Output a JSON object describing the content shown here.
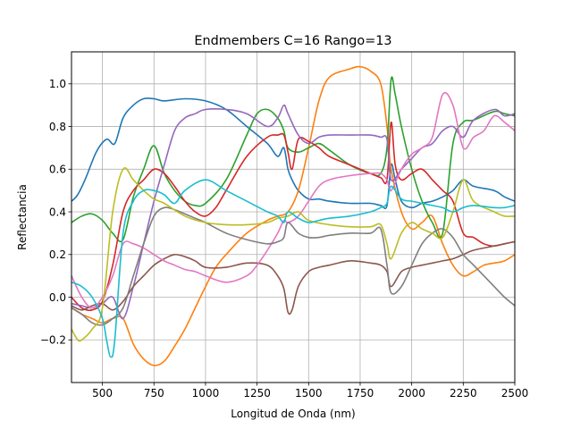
{
  "chart_data": {
    "type": "line",
    "title": "Endmembers C=16 Rango=13",
    "xlabel": "Longitud de Onda (nm)",
    "ylabel": "Reflectancia",
    "xlim": [
      350,
      2500
    ],
    "ylim": [
      -0.4,
      1.15
    ],
    "xticks": [
      500,
      750,
      1000,
      1250,
      1500,
      1750,
      2000,
      2250,
      2500
    ],
    "xtick_labels": [
      "500",
      "750",
      "1000",
      "1250",
      "1500",
      "1750",
      "2000",
      "2250",
      "2500"
    ],
    "yticks": [
      -0.2,
      0.0,
      0.2,
      0.4,
      0.6,
      0.8,
      1.0
    ],
    "ytick_labels": [
      "−0.2",
      "0.0",
      "0.2",
      "0.4",
      "0.6",
      "0.8",
      "1.0"
    ],
    "grid": true,
    "legend": "none",
    "series": [
      {
        "color": "#1f77b4",
        "x": [
          350,
          380,
          420,
          470,
          520,
          560,
          600,
          650,
          700,
          750,
          800,
          900,
          1000,
          1100,
          1200,
          1300,
          1350,
          1380,
          1400,
          1420,
          1450,
          1500,
          1550,
          1600,
          1700,
          1800,
          1850,
          1880,
          1900,
          1920,
          1950,
          2000,
          2050,
          2100,
          2150,
          2200,
          2250,
          2300,
          2400,
          2450,
          2500
        ],
        "y": [
          0.45,
          0.48,
          0.56,
          0.68,
          0.74,
          0.72,
          0.84,
          0.9,
          0.93,
          0.93,
          0.92,
          0.93,
          0.92,
          0.88,
          0.8,
          0.72,
          0.66,
          0.7,
          0.6,
          0.55,
          0.5,
          0.46,
          0.46,
          0.45,
          0.44,
          0.44,
          0.43,
          0.43,
          0.62,
          0.55,
          0.45,
          0.42,
          0.44,
          0.45,
          0.47,
          0.5,
          0.55,
          0.52,
          0.5,
          0.47,
          0.45
        ]
      },
      {
        "color": "#ff7f0e",
        "x": [
          350,
          400,
          450,
          500,
          550,
          600,
          650,
          700,
          750,
          800,
          850,
          900,
          950,
          1000,
          1050,
          1100,
          1200,
          1300,
          1350,
          1400,
          1450,
          1500,
          1550,
          1600,
          1700,
          1750,
          1800,
          1850,
          1880,
          1900,
          1950,
          2000,
          2050,
          2100,
          2150,
          2200,
          2250,
          2300,
          2350,
          2400,
          2450,
          2500
        ],
        "y": [
          -0.05,
          -0.08,
          -0.1,
          -0.12,
          -0.1,
          -0.1,
          -0.22,
          -0.29,
          -0.32,
          -0.3,
          -0.23,
          -0.15,
          -0.05,
          0.05,
          0.14,
          0.2,
          0.3,
          0.36,
          0.38,
          0.4,
          0.5,
          0.7,
          0.92,
          1.03,
          1.07,
          1.08,
          1.06,
          1.0,
          0.8,
          0.6,
          0.4,
          0.32,
          0.35,
          0.38,
          0.25,
          0.15,
          0.1,
          0.12,
          0.15,
          0.16,
          0.17,
          0.2
        ]
      },
      {
        "color": "#2ca02c",
        "x": [
          350,
          400,
          450,
          500,
          550,
          600,
          650,
          700,
          750,
          800,
          850,
          900,
          950,
          1000,
          1100,
          1200,
          1250,
          1300,
          1350,
          1380,
          1400,
          1450,
          1500,
          1550,
          1600,
          1700,
          1800,
          1850,
          1880,
          1900,
          1920,
          1950,
          2000,
          2050,
          2100,
          2150,
          2200,
          2250,
          2300,
          2400,
          2450,
          2500
        ],
        "y": [
          0.35,
          0.38,
          0.39,
          0.36,
          0.3,
          0.27,
          0.47,
          0.6,
          0.71,
          0.58,
          0.5,
          0.45,
          0.43,
          0.44,
          0.55,
          0.76,
          0.86,
          0.88,
          0.84,
          0.78,
          0.7,
          0.68,
          0.7,
          0.72,
          0.69,
          0.62,
          0.58,
          0.58,
          0.7,
          1.02,
          0.95,
          0.8,
          0.6,
          0.45,
          0.35,
          0.3,
          0.72,
          0.82,
          0.83,
          0.87,
          0.86,
          0.85
        ]
      },
      {
        "color": "#d62728",
        "x": [
          350,
          400,
          450,
          500,
          550,
          600,
          650,
          700,
          750,
          800,
          850,
          900,
          950,
          1000,
          1050,
          1100,
          1200,
          1300,
          1350,
          1380,
          1400,
          1420,
          1450,
          1500,
          1550,
          1600,
          1700,
          1800,
          1850,
          1880,
          1900,
          1920,
          1950,
          2000,
          2050,
          2100,
          2150,
          2200,
          2250,
          2300,
          2350,
          2400,
          2450,
          2500
        ],
        "y": [
          0.0,
          -0.05,
          -0.06,
          -0.02,
          0.15,
          0.4,
          0.5,
          0.55,
          0.6,
          0.58,
          0.52,
          0.45,
          0.4,
          0.38,
          0.42,
          0.5,
          0.66,
          0.75,
          0.76,
          0.76,
          0.68,
          0.6,
          0.74,
          0.73,
          0.7,
          0.66,
          0.62,
          0.58,
          0.56,
          0.55,
          0.82,
          0.62,
          0.55,
          0.58,
          0.6,
          0.55,
          0.5,
          0.45,
          0.3,
          0.28,
          0.25,
          0.24,
          0.25,
          0.26
        ]
      },
      {
        "color": "#9467bd",
        "x": [
          350,
          400,
          450,
          500,
          550,
          600,
          650,
          700,
          750,
          800,
          850,
          900,
          950,
          1000,
          1100,
          1200,
          1300,
          1350,
          1380,
          1400,
          1450,
          1500,
          1550,
          1600,
          1700,
          1800,
          1850,
          1880,
          1900,
          1950,
          2000,
          2050,
          2100,
          2150,
          2200,
          2250,
          2300,
          2400,
          2450,
          2500
        ],
        "y": [
          -0.03,
          -0.04,
          -0.05,
          -0.03,
          0.0,
          -0.1,
          0.05,
          0.25,
          0.45,
          0.62,
          0.78,
          0.84,
          0.86,
          0.88,
          0.88,
          0.86,
          0.8,
          0.84,
          0.9,
          0.86,
          0.76,
          0.72,
          0.75,
          0.76,
          0.76,
          0.76,
          0.75,
          0.74,
          0.55,
          0.6,
          0.65,
          0.7,
          0.72,
          0.78,
          0.8,
          0.75,
          0.83,
          0.88,
          0.85,
          0.86
        ]
      },
      {
        "color": "#8c564b",
        "x": [
          350,
          400,
          450,
          500,
          550,
          600,
          650,
          700,
          750,
          800,
          850,
          900,
          950,
          1000,
          1100,
          1200,
          1300,
          1350,
          1380,
          1400,
          1420,
          1450,
          1500,
          1550,
          1600,
          1700,
          1800,
          1850,
          1880,
          1900,
          1950,
          2000,
          2050,
          2100,
          2150,
          2200,
          2250,
          2300,
          2400,
          2450,
          2500
        ],
        "y": [
          -0.04,
          -0.06,
          -0.04,
          -0.03,
          -0.06,
          -0.02,
          0.05,
          0.1,
          0.15,
          0.18,
          0.2,
          0.19,
          0.17,
          0.14,
          0.14,
          0.16,
          0.15,
          0.1,
          0.04,
          -0.07,
          -0.06,
          0.05,
          0.12,
          0.14,
          0.15,
          0.17,
          0.16,
          0.15,
          0.12,
          0.05,
          0.12,
          0.14,
          0.15,
          0.16,
          0.17,
          0.18,
          0.2,
          0.22,
          0.24,
          0.25,
          0.26
        ]
      },
      {
        "color": "#e377c2",
        "x": [
          350,
          400,
          450,
          500,
          550,
          600,
          650,
          700,
          750,
          800,
          850,
          900,
          950,
          1000,
          1100,
          1200,
          1250,
          1300,
          1350,
          1380,
          1400,
          1450,
          1500,
          1550,
          1600,
          1700,
          1800,
          1850,
          1880,
          1900,
          1950,
          2000,
          2050,
          2100,
          2150,
          2200,
          2250,
          2300,
          2350,
          2400,
          2450,
          2500
        ],
        "y": [
          0.1,
          0.0,
          -0.05,
          0.0,
          0.1,
          0.25,
          0.25,
          0.23,
          0.2,
          0.17,
          0.15,
          0.13,
          0.12,
          0.1,
          0.07,
          0.1,
          0.15,
          0.22,
          0.3,
          0.36,
          0.35,
          0.38,
          0.45,
          0.52,
          0.55,
          0.57,
          0.58,
          0.58,
          0.55,
          0.5,
          0.6,
          0.67,
          0.7,
          0.75,
          0.95,
          0.9,
          0.7,
          0.75,
          0.78,
          0.85,
          0.82,
          0.78
        ]
      },
      {
        "color": "#7f7f7f",
        "x": [
          350,
          400,
          450,
          500,
          550,
          600,
          650,
          700,
          750,
          800,
          850,
          900,
          950,
          1000,
          1100,
          1200,
          1300,
          1350,
          1380,
          1400,
          1450,
          1500,
          1550,
          1600,
          1700,
          1800,
          1850,
          1880,
          1900,
          1950,
          2000,
          2050,
          2100,
          2150,
          2200,
          2250,
          2300,
          2350,
          2400,
          2450,
          2500
        ],
        "y": [
          -0.05,
          -0.08,
          -0.12,
          -0.13,
          -0.1,
          -0.05,
          0.1,
          0.25,
          0.38,
          0.42,
          0.41,
          0.39,
          0.37,
          0.35,
          0.3,
          0.27,
          0.25,
          0.26,
          0.28,
          0.35,
          0.3,
          0.28,
          0.28,
          0.29,
          0.3,
          0.3,
          0.32,
          0.15,
          0.02,
          0.05,
          0.15,
          0.25,
          0.3,
          0.32,
          0.28,
          0.2,
          0.15,
          0.1,
          0.05,
          0.0,
          -0.04
        ]
      },
      {
        "color": "#bcbd22",
        "x": [
          350,
          380,
          400,
          450,
          500,
          550,
          600,
          650,
          700,
          750,
          800,
          900,
          1000,
          1100,
          1200,
          1300,
          1350,
          1400,
          1450,
          1500,
          1600,
          1700,
          1800,
          1850,
          1880,
          1900,
          1950,
          2000,
          2050,
          2100,
          2150,
          2200,
          2250,
          2300,
          2400,
          2450,
          2500
        ],
        "y": [
          -0.15,
          -0.2,
          -0.2,
          -0.15,
          -0.05,
          0.4,
          0.6,
          0.55,
          0.5,
          0.46,
          0.44,
          0.38,
          0.35,
          0.34,
          0.34,
          0.35,
          0.37,
          0.38,
          0.4,
          0.36,
          0.34,
          0.33,
          0.33,
          0.34,
          0.25,
          0.18,
          0.3,
          0.35,
          0.32,
          0.3,
          0.28,
          0.4,
          0.55,
          0.45,
          0.4,
          0.38,
          0.38
        ]
      },
      {
        "color": "#17becf",
        "x": [
          350,
          400,
          450,
          500,
          520,
          540,
          560,
          600,
          650,
          700,
          750,
          800,
          850,
          900,
          1000,
          1100,
          1200,
          1300,
          1350,
          1380,
          1400,
          1450,
          1500,
          1550,
          1600,
          1700,
          1800,
          1850,
          1880,
          1900,
          1950,
          2000,
          2050,
          2100,
          2150,
          2200,
          2250,
          2300,
          2400,
          2450,
          2500
        ],
        "y": [
          0.07,
          0.05,
          0.0,
          -0.1,
          -0.2,
          -0.28,
          -0.2,
          0.3,
          0.45,
          0.5,
          0.5,
          0.48,
          0.44,
          0.5,
          0.55,
          0.5,
          0.45,
          0.4,
          0.38,
          0.35,
          0.4,
          0.37,
          0.35,
          0.36,
          0.37,
          0.38,
          0.4,
          0.42,
          0.44,
          0.52,
          0.46,
          0.45,
          0.44,
          0.43,
          0.42,
          0.4,
          0.42,
          0.43,
          0.42,
          0.42,
          0.43
        ]
      }
    ]
  }
}
